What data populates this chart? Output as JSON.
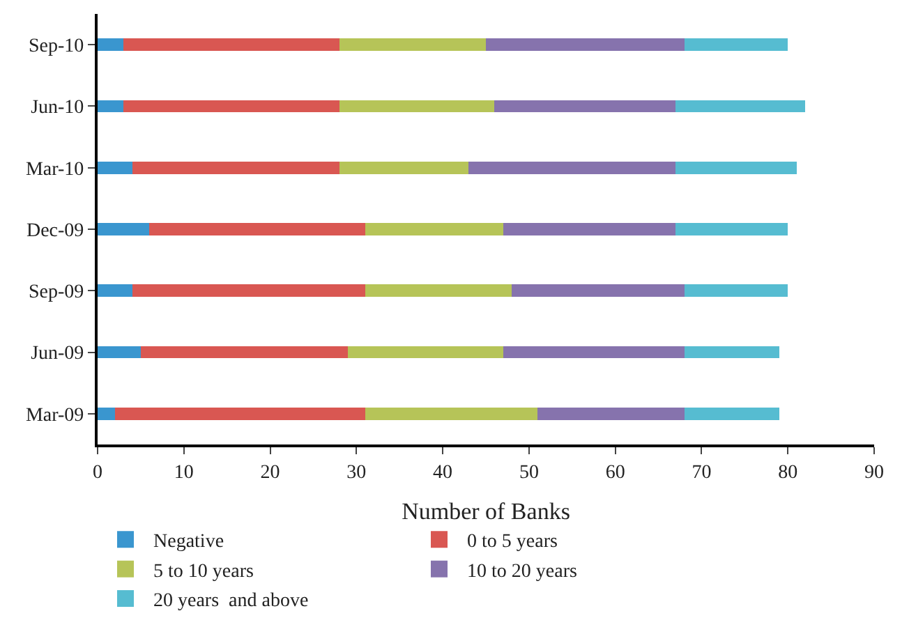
{
  "chart_data": {
    "type": "bar",
    "orientation": "horizontal",
    "stacked": true,
    "xlabel": "Number of Banks",
    "categories": [
      "Sep-10",
      "Jun-10",
      "Mar-10",
      "Dec-09",
      "Sep-09",
      "Jun-09",
      "Mar-09"
    ],
    "series": [
      {
        "name": "Negative",
        "color": "#3a96cf",
        "values": [
          3,
          3,
          4,
          6,
          4,
          5,
          2
        ]
      },
      {
        "name": "0 to 5 years",
        "color": "#d95752",
        "values": [
          25,
          25,
          24,
          25,
          27,
          24,
          29
        ]
      },
      {
        "name": "5 to 10 years",
        "color": "#b6c458",
        "values": [
          17,
          18,
          15,
          16,
          17,
          18,
          20
        ]
      },
      {
        "name": "10 to 20 years",
        "color": "#8673ad",
        "values": [
          23,
          21,
          24,
          20,
          20,
          21,
          17
        ]
      },
      {
        "name": "20 years  and above",
        "color": "#56bcd1",
        "values": [
          12,
          15,
          14,
          13,
          12,
          11,
          11
        ]
      }
    ],
    "xlim": [
      0,
      90
    ],
    "xticks": [
      0,
      10,
      20,
      30,
      40,
      50,
      60,
      70,
      80,
      90
    ],
    "legend": "bottom"
  }
}
